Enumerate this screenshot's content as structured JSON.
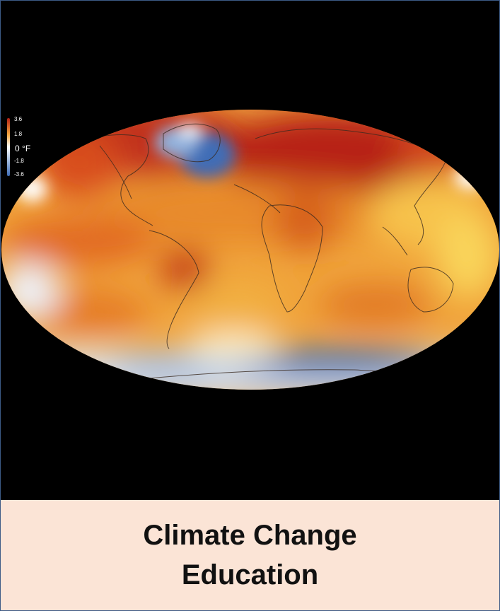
{
  "map": {
    "legend": {
      "ticks": [
        "3.6",
        "1.8",
        "-1.8",
        "-3.6"
      ],
      "zero_label": "0",
      "unit": "°F",
      "colors": {
        "hot": "#b21f14",
        "warm": "#e46d1f",
        "mild": "#f6c049",
        "neutral": "#ffffff",
        "cool": "#9cb7dd",
        "cold": "#3d6bb5"
      }
    }
  },
  "caption": {
    "line1": "Climate Change",
    "line2": "Education"
  },
  "colors": {
    "caption_background": "#fbe4d6",
    "frame_border": "#3c5a86",
    "map_background": "#000000"
  }
}
